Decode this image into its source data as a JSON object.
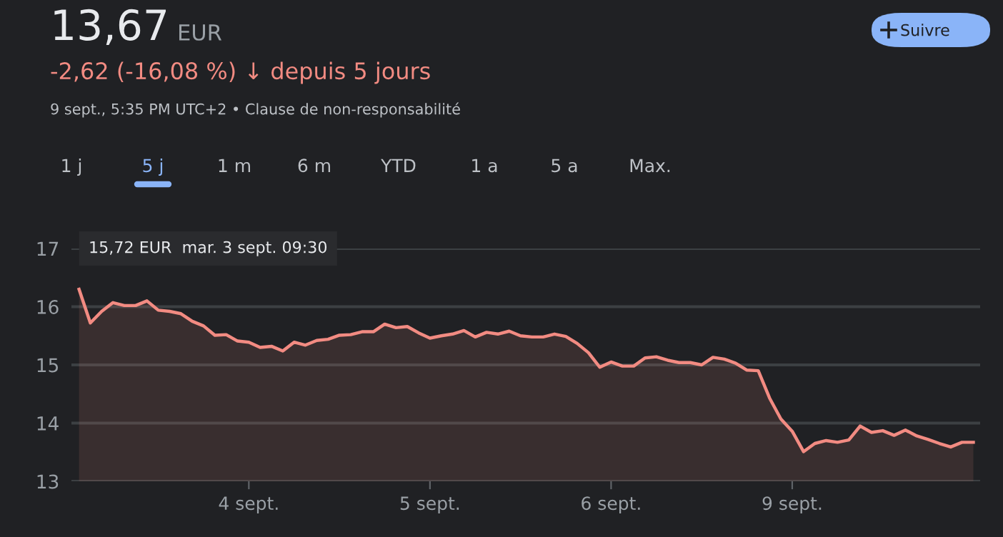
{
  "chart_data": {
    "type": "area",
    "categories": [
      null,
      null,
      null,
      null,
      null,
      null,
      null,
      null,
      null,
      null,
      null,
      null,
      null,
      null,
      null,
      "4 sept.",
      null,
      null,
      null,
      null,
      null,
      null,
      null,
      null,
      null,
      null,
      null,
      null,
      null,
      null,
      null,
      "5 sept.",
      null,
      null,
      null,
      null,
      null,
      null,
      null,
      null,
      null,
      null,
      null,
      null,
      null,
      null,
      null,
      "6 sept.",
      null,
      null,
      null,
      null,
      null,
      null,
      null,
      null,
      null,
      null,
      null,
      null,
      null,
      null,
      null,
      "9 sept.",
      null,
      null,
      null,
      null,
      null,
      null,
      null,
      null,
      null,
      null,
      null,
      null,
      null,
      null,
      null,
      null
    ],
    "series": [
      {
        "color": "#f28b82",
        "values": [
          16.3,
          15.72,
          15.92,
          16.07,
          16.02,
          16.02,
          16.1,
          15.94,
          15.92,
          15.88,
          15.75,
          15.67,
          15.51,
          15.52,
          15.41,
          15.39,
          15.3,
          15.32,
          15.24,
          15.39,
          15.34,
          15.42,
          15.44,
          15.51,
          15.52,
          15.57,
          15.57,
          15.7,
          15.64,
          15.66,
          15.55,
          15.46,
          15.5,
          15.53,
          15.59,
          15.48,
          15.56,
          15.53,
          15.58,
          15.5,
          15.48,
          15.48,
          15.53,
          15.49,
          15.37,
          15.21,
          14.96,
          15.05,
          14.98,
          14.98,
          15.12,
          15.14,
          15.08,
          15.04,
          15.04,
          15.0,
          15.13,
          15.1,
          15.03,
          14.91,
          14.9,
          14.43,
          14.07,
          13.86,
          13.51,
          13.65,
          13.7,
          13.67,
          13.71,
          13.95,
          13.84,
          13.87,
          13.79,
          13.88,
          13.78,
          13.72,
          13.65,
          13.59,
          13.67,
          13.67
        ]
      }
    ],
    "ylim": [
      13,
      17
    ],
    "yticks": [
      13,
      14,
      15,
      16,
      17
    ],
    "grid": "y",
    "annotations": [
      "13,67",
      "EUR",
      "-2,62 (-16,08 %) ↓ depuis 5 jours",
      "9 sept., 5:35 PM UTC+2 • Clause de non-responsabilité",
      "Suivre",
      "1 j",
      "5 j",
      "1 m",
      "6 m",
      "YTD",
      "1 a",
      "5 a",
      "Max.",
      "15,72 EUR  mar. 3 sept. 09:30"
    ]
  }
}
